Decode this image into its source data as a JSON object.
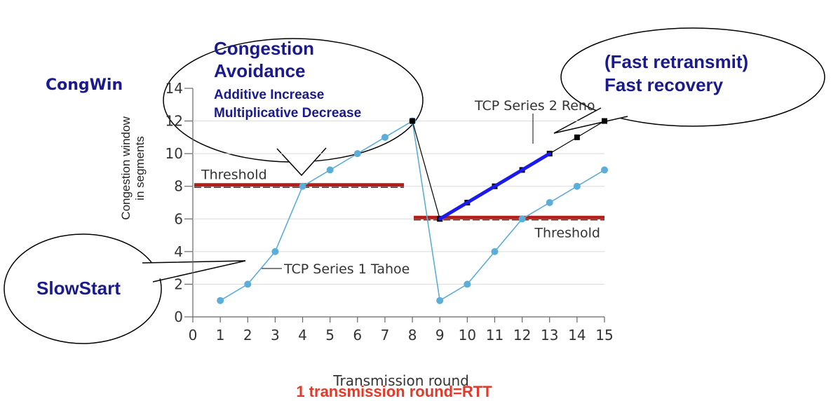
{
  "chart_data": {
    "type": "line",
    "xlabel": "Transmission round",
    "ylabel_line1": "Congestion window",
    "ylabel_line2": "in segments",
    "xlim": [
      0,
      15
    ],
    "ylim": [
      0,
      14
    ],
    "x_ticks": [
      "0",
      "1",
      "2",
      "3",
      "4",
      "5",
      "6",
      "7",
      "8",
      "9",
      "10",
      "11",
      "12",
      "13",
      "14",
      "15"
    ],
    "y_ticks": [
      "0",
      "2",
      "4",
      "6",
      "8",
      "10",
      "12",
      "14"
    ],
    "grid": false,
    "series": [
      {
        "name": "TCP Series 1 Tahoe",
        "color": "#5aaed8",
        "x": [
          1,
          2,
          3,
          4,
          5,
          6,
          7,
          8,
          9,
          10,
          11,
          12,
          13,
          14,
          15
        ],
        "values": [
          1,
          2,
          4,
          8,
          9,
          10,
          11,
          12,
          1,
          2,
          4,
          6,
          7,
          8,
          9
        ]
      },
      {
        "name": "TCP Series 2 Reno",
        "color": "#000000",
        "x": [
          8,
          9,
          10,
          11,
          12,
          13,
          14,
          15
        ],
        "values": [
          12,
          6,
          7,
          8,
          9,
          10,
          11,
          12
        ]
      }
    ],
    "highlight_line": {
      "color": "#1a1aee",
      "x": [
        9,
        13
      ],
      "y": [
        6,
        10
      ]
    },
    "thresholds": [
      {
        "label": "Threshold",
        "x": [
          0,
          8
        ],
        "y": 8,
        "color": "#b11f18"
      },
      {
        "label": "Threshold",
        "x": [
          8,
          15
        ],
        "y": 6,
        "color": "#b11f18"
      }
    ]
  },
  "labels": {
    "congwin": "CongWin",
    "congestion_avoidance_line1": "Congestion",
    "congestion_avoidance_line2": "Avoidance",
    "additive_increase": "Additive Increase",
    "multiplicative_decrease": "Multiplicative Decrease",
    "fast_retransmit": "(Fast retransmit)",
    "fast_recovery": "Fast recovery",
    "slowstart": "SlowStart",
    "rtt_note": "1 transmission round=RTT"
  },
  "colors": {
    "callout_text": "#1a1a8c",
    "rtt_note": "#e23a2a"
  }
}
